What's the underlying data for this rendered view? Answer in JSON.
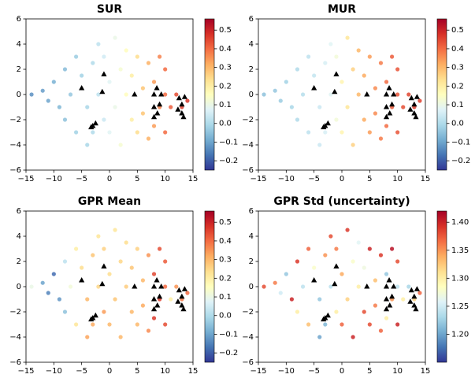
{
  "chart_data": [
    {
      "type": "scatter",
      "title": "SUR",
      "xlim": [
        -15,
        15
      ],
      "ylim": [
        -6,
        6
      ],
      "xticks": [
        {
          "value": -15,
          "label": "−15"
        },
        {
          "value": -10,
          "label": "−10"
        },
        {
          "value": -5,
          "label": "−5"
        },
        0,
        5,
        10,
        15
      ],
      "yticks": [
        {
          "value": -6,
          "label": "−6"
        },
        {
          "value": -4,
          "label": "−4"
        },
        {
          "value": -2,
          "label": "−2"
        },
        0,
        2,
        4,
        6
      ],
      "colormap": "RdYlBu_r",
      "clim": [
        -0.25,
        0.56
      ],
      "cticks": [
        {
          "value": -0.2,
          "label": "−0.2"
        },
        {
          "value": -0.1,
          "label": "−0.1"
        },
        {
          "value": 0,
          "label": "0.0"
        },
        0.1,
        0.2,
        0.3,
        0.4,
        0.5
      ],
      "points": {
        "x": [
          -14,
          -12,
          -11,
          -10,
          -9,
          -8,
          -8,
          -7,
          -6,
          -6,
          -5,
          -4,
          -4,
          -3,
          -3,
          -2,
          -2,
          -1,
          -1,
          0,
          0,
          1,
          1,
          2,
          2,
          3,
          3,
          4,
          4,
          5,
          5,
          6,
          6,
          7,
          7,
          8,
          8,
          9,
          9,
          10,
          10,
          10,
          11,
          12,
          13,
          14
        ],
        "y": [
          0,
          0.3,
          -0.5,
          1,
          -1,
          2,
          -2,
          0,
          3,
          -3,
          1.5,
          -1,
          -4,
          2.5,
          -3,
          0,
          4,
          -2,
          3,
          1,
          -3,
          4.5,
          -1,
          2,
          -4,
          0,
          3.5,
          -2,
          1.5,
          3,
          -3,
          0.5,
          -1.5,
          2.5,
          -3.5,
          1,
          -2.5,
          3,
          -1,
          0,
          2,
          -3,
          -1,
          0,
          -1,
          -0.5
        ],
        "c": [
          -0.13,
          -0.11,
          -0.1,
          -0.08,
          -0.07,
          -0.06,
          -0.05,
          -0.04,
          -0.03,
          -0.02,
          -0.02,
          -0.01,
          -0.01,
          0,
          0,
          0.02,
          0.02,
          0.04,
          0.05,
          0.08,
          0.08,
          0.1,
          0.1,
          0.13,
          0.13,
          0.16,
          0.16,
          0.2,
          0.2,
          0.24,
          0.24,
          0.28,
          0.28,
          0.31,
          0.31,
          0.34,
          0.34,
          0.37,
          0.37,
          0.4,
          0.4,
          0.4,
          0.42,
          0.44,
          0.46,
          0.47
        ]
      },
      "anchors": {
        "color": "black",
        "x": [
          -5,
          -3,
          -2.5,
          -3.3,
          -1,
          -1.3,
          4.5,
          8,
          8.5,
          8,
          9,
          9.3,
          8,
          8.6,
          12.5,
          13,
          12.3,
          13,
          13.3,
          13.5
        ],
        "y": [
          0.5,
          -2.5,
          -2.3,
          -2.6,
          1.6,
          0.2,
          0,
          0,
          0.5,
          -1,
          -0.8,
          0,
          -1.8,
          -1.5,
          -0.3,
          -0.8,
          -1.2,
          -1.5,
          -1.8,
          -0.2
        ]
      }
    },
    {
      "type": "scatter",
      "title": "MUR",
      "xlim": [
        -15,
        15
      ],
      "ylim": [
        -6,
        6
      ],
      "xticks": [
        {
          "value": -15,
          "label": "−15"
        },
        {
          "value": -10,
          "label": "−10"
        },
        {
          "value": -5,
          "label": "−5"
        },
        0,
        5,
        10,
        15
      ],
      "yticks": [
        {
          "value": -6,
          "label": "−6"
        },
        {
          "value": -4,
          "label": "−4"
        },
        {
          "value": -2,
          "label": "−2"
        },
        0,
        2,
        4,
        6
      ],
      "colormap": "RdYlBu_r",
      "clim": [
        -0.25,
        0.56
      ],
      "cticks": [
        {
          "value": -0.2,
          "label": "−0.2"
        },
        {
          "value": -0.1,
          "label": "−0.1"
        },
        {
          "value": 0,
          "label": "0.0"
        },
        0.1,
        0.2,
        0.3,
        0.4,
        0.5
      ],
      "points": {
        "x": [
          -14,
          -12,
          -11,
          -10,
          -9,
          -8,
          -8,
          -7,
          -6,
          -6,
          -5,
          -4,
          -4,
          -3,
          -3,
          -2,
          -2,
          -1,
          -1,
          0,
          0,
          1,
          1,
          2,
          2,
          3,
          3,
          4,
          4,
          5,
          5,
          6,
          6,
          7,
          7,
          8,
          8,
          9,
          9,
          10,
          10,
          10,
          11,
          12,
          13,
          14
        ],
        "y": [
          0,
          0.3,
          -0.5,
          1,
          -1,
          2,
          -2,
          0,
          3,
          -3,
          1.5,
          -1,
          -4,
          2.5,
          -3,
          0,
          4,
          -2,
          3,
          1,
          -3,
          4.5,
          -1,
          2,
          -4,
          0,
          3.5,
          -2,
          1.5,
          3,
          -3,
          0.5,
          -1.5,
          2.5,
          -3.5,
          1,
          -2.5,
          3,
          -1,
          0,
          2,
          -3,
          -1,
          0,
          -1,
          -0.5
        ],
        "c": [
          -0.05,
          -0.04,
          -0.03,
          -0.02,
          -0.01,
          0,
          0,
          0.01,
          0.02,
          0.02,
          0.03,
          0.04,
          0.04,
          0.06,
          0.06,
          0.08,
          0.08,
          0.12,
          0.12,
          0.18,
          0.18,
          0.22,
          0.22,
          0.26,
          0.26,
          0.3,
          0.3,
          0.32,
          0.32,
          0.34,
          0.34,
          0.36,
          0.36,
          0.38,
          0.38,
          0.4,
          0.4,
          0.42,
          0.42,
          0.43,
          0.43,
          0.43,
          0.44,
          0.45,
          0.46,
          0.46
        ]
      },
      "anchors": {
        "color": "black",
        "x": [
          -5,
          -3,
          -2.5,
          -3.3,
          -1,
          -1.3,
          4.5,
          8,
          8.5,
          8,
          9,
          9.3,
          8,
          8.6,
          12.5,
          13,
          12.3,
          13,
          13.3,
          13.5
        ],
        "y": [
          0.5,
          -2.5,
          -2.3,
          -2.6,
          1.6,
          0.2,
          0,
          0,
          0.5,
          -1,
          -0.8,
          0,
          -1.8,
          -1.5,
          -0.3,
          -0.8,
          -1.2,
          -1.5,
          -1.8,
          -0.2
        ]
      }
    },
    {
      "type": "scatter",
      "title": "GPR Mean",
      "xlim": [
        -15,
        15
      ],
      "ylim": [
        -6,
        6
      ],
      "xticks": [
        {
          "value": -15,
          "label": "−15"
        },
        {
          "value": -10,
          "label": "−10"
        },
        {
          "value": -5,
          "label": "−5"
        },
        0,
        5,
        10,
        15
      ],
      "yticks": [
        {
          "value": -6,
          "label": "−6"
        },
        {
          "value": -4,
          "label": "−4"
        },
        {
          "value": -2,
          "label": "−2"
        },
        0,
        2,
        4,
        6
      ],
      "colormap": "RdYlBu_r",
      "clim": [
        -0.25,
        0.56
      ],
      "cticks": [
        {
          "value": -0.2,
          "label": "−0.2"
        },
        {
          "value": -0.1,
          "label": "−0.1"
        },
        {
          "value": 0,
          "label": "0.0"
        },
        0.1,
        0.2,
        0.3,
        0.4,
        0.5
      ],
      "points": {
        "x": [
          -14,
          -12,
          -11,
          -10,
          -9,
          -8,
          -8,
          -7,
          -6,
          -6,
          -5,
          -4,
          -4,
          -3,
          -3,
          -2,
          -2,
          -1,
          -1,
          0,
          0,
          1,
          1,
          2,
          2,
          3,
          3,
          4,
          4,
          5,
          5,
          6,
          6,
          7,
          7,
          8,
          8,
          9,
          9,
          10,
          10,
          10,
          11,
          12,
          13,
          14
        ],
        "y": [
          0,
          0.3,
          -0.5,
          1,
          -1,
          2,
          -2,
          0,
          3,
          -3,
          1.5,
          -1,
          -4,
          2.5,
          -3,
          0,
          4,
          -2,
          3,
          1,
          -3,
          4.5,
          -1,
          2,
          -4,
          0,
          3.5,
          -2,
          1.5,
          3,
          -3,
          0.5,
          -1.5,
          2.5,
          -3.5,
          1,
          -2.5,
          3,
          -1,
          0,
          2,
          -3,
          -1,
          0,
          -1,
          -0.5
        ],
        "c": [
          0.1,
          -0.1,
          -0.15,
          -0.18,
          -0.12,
          0.02,
          -0.05,
          0.12,
          0.2,
          0.22,
          0.24,
          0.3,
          0.33,
          0.28,
          0.32,
          0.25,
          0.22,
          0.34,
          0.26,
          0.24,
          0.3,
          0.22,
          0.28,
          0.25,
          0.3,
          0.27,
          0.24,
          0.3,
          0.28,
          0.26,
          0.3,
          0.3,
          0.32,
          0.35,
          0.36,
          0.45,
          0.47,
          0.44,
          0.46,
          0.4,
          0.42,
          0.44,
          0.2,
          0.35,
          0.38,
          0.4
        ]
      },
      "anchors": {
        "color": "black",
        "x": [
          -5,
          -3,
          -2.5,
          -3.3,
          -1,
          -1.3,
          4.5,
          8,
          8.5,
          8,
          9,
          9.3,
          8,
          8.6,
          12.5,
          13,
          12.3,
          13,
          13.3,
          13.5
        ],
        "y": [
          0.5,
          -2.5,
          -2.3,
          -2.6,
          1.6,
          0.2,
          0,
          0,
          0.5,
          -1,
          -0.8,
          0,
          -1.8,
          -1.5,
          -0.3,
          -0.8,
          -1.2,
          -1.5,
          -1.8,
          -0.2
        ]
      }
    },
    {
      "type": "scatter",
      "title": "GPR Std (uncertainty)",
      "xlim": [
        -15,
        15
      ],
      "ylim": [
        -6,
        6
      ],
      "xticks": [
        {
          "value": -15,
          "label": "−15"
        },
        {
          "value": -10,
          "label": "−10"
        },
        {
          "value": -5,
          "label": "−5"
        },
        0,
        5,
        10,
        15
      ],
      "yticks": [
        {
          "value": -6,
          "label": "−6"
        },
        {
          "value": -4,
          "label": "−4"
        },
        {
          "value": -2,
          "label": "−2"
        },
        0,
        2,
        4,
        6
      ],
      "colormap": "RdYlBu_r",
      "clim": [
        1.15,
        1.42
      ],
      "cticks": [
        {
          "value": 1.2,
          "label": "1.20"
        },
        1.25,
        {
          "value": 1.3,
          "label": "1.30"
        },
        1.35,
        {
          "value": 1.4,
          "label": "1.40"
        }
      ],
      "points": {
        "x": [
          -14,
          -12,
          -11,
          -10,
          -9,
          -8,
          -8,
          -7,
          -6,
          -6,
          -5,
          -4,
          -4,
          -3,
          -3,
          -2,
          -2,
          -1,
          -1,
          0,
          0,
          1,
          1,
          2,
          2,
          3,
          3,
          4,
          4,
          5,
          5,
          6,
          6,
          7,
          7,
          8,
          8,
          9,
          9,
          10,
          10,
          10,
          11,
          12,
          13,
          14
        ],
        "y": [
          0,
          0.3,
          -0.5,
          1,
          -1,
          2,
          -2,
          0,
          3,
          -3,
          1.5,
          -1,
          -4,
          2.5,
          -3,
          0,
          4,
          -2,
          3,
          1,
          -3,
          4.5,
          -1,
          2,
          -4,
          0,
          3.5,
          -2,
          1.5,
          3,
          -3,
          0.5,
          -1.5,
          2.5,
          -3.5,
          1,
          -2.5,
          3,
          -1,
          0,
          2,
          -3,
          -1,
          0,
          -1,
          -0.5
        ],
        "c": [
          1.38,
          1.36,
          1.25,
          1.22,
          1.4,
          1.39,
          1.3,
          1.24,
          1.37,
          1.33,
          1.28,
          1.22,
          1.2,
          1.35,
          1.21,
          1.24,
          1.38,
          1.3,
          1.36,
          1.34,
          1.37,
          1.39,
          1.32,
          1.28,
          1.4,
          1.3,
          1.26,
          1.38,
          1.27,
          1.4,
          1.38,
          1.33,
          1.36,
          1.39,
          1.37,
          1.22,
          1.3,
          1.41,
          1.35,
          1.24,
          1.38,
          1.4,
          1.3,
          1.23,
          1.32,
          1.37
        ]
      },
      "anchors": {
        "color": "black",
        "x": [
          -5,
          -3,
          -2.5,
          -3.3,
          -1,
          -1.3,
          4.5,
          8,
          8.5,
          8,
          9,
          9.3,
          8,
          8.6,
          12.5,
          13,
          12.3,
          13,
          13.3,
          13.5
        ],
        "y": [
          0.5,
          -2.5,
          -2.3,
          -2.6,
          1.6,
          0.2,
          0,
          0,
          0.5,
          -1,
          -0.8,
          0,
          -1.8,
          -1.5,
          -0.3,
          -0.8,
          -1.2,
          -1.5,
          -1.8,
          -0.2
        ]
      }
    }
  ]
}
